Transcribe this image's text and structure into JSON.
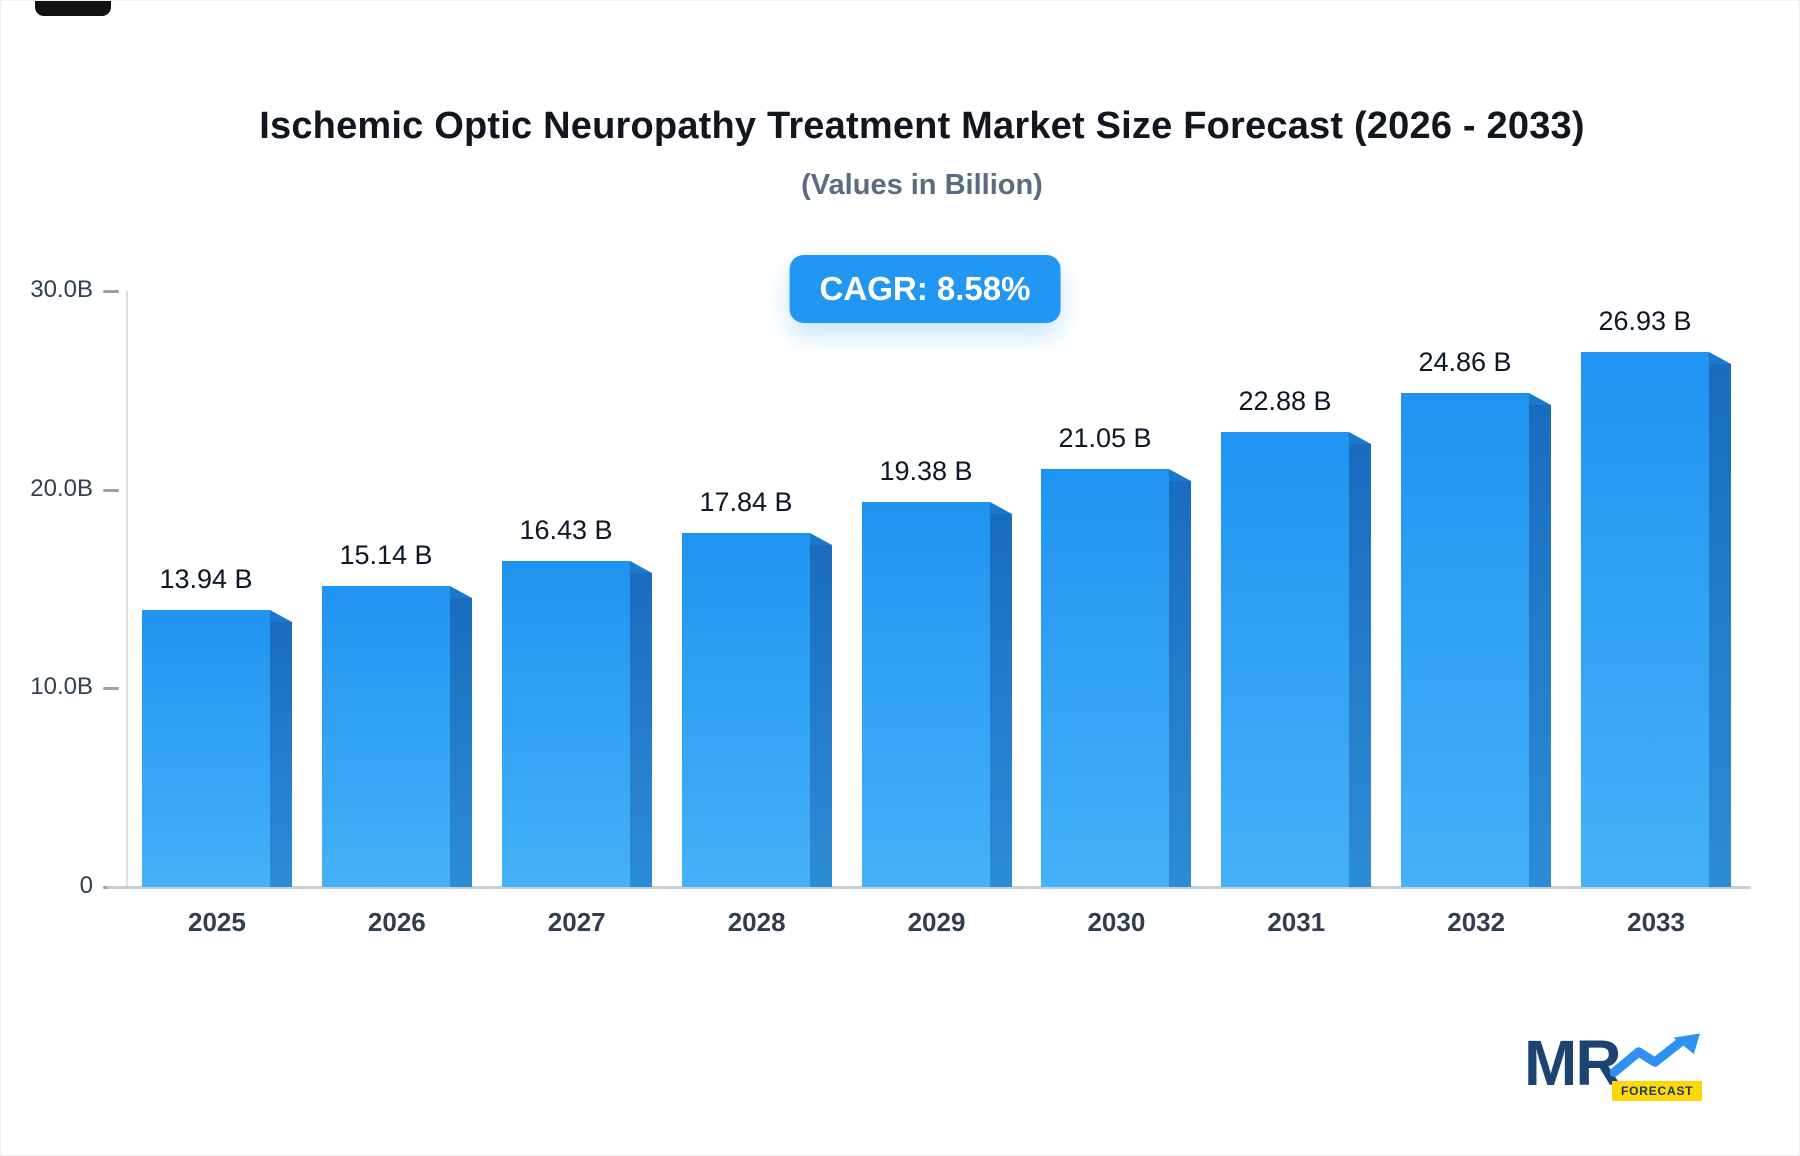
{
  "header": {
    "title": "Ischemic Optic Neuropathy Treatment Market Size Forecast (2026 - 2033)",
    "subtitle": "(Values in Billion)",
    "cagr_badge": "CAGR: 8.58%"
  },
  "chart_data": {
    "type": "bar",
    "title": "Ischemic Optic Neuropathy Treatment Market Size Forecast (2026 - 2033)",
    "subtitle": "(Values in Billion)",
    "cagr_percent": 8.58,
    "categories": [
      "2025",
      "2026",
      "2027",
      "2028",
      "2029",
      "2030",
      "2031",
      "2032",
      "2033"
    ],
    "values": [
      13.94,
      15.14,
      16.43,
      17.84,
      19.38,
      21.05,
      22.88,
      24.86,
      26.93
    ],
    "value_labels": [
      "13.94 B",
      "15.14 B",
      "16.43 B",
      "17.84 B",
      "19.38 B",
      "21.05 B",
      "22.88 B",
      "24.86 B",
      "26.93 B"
    ],
    "ylim": [
      0,
      30
    ],
    "yticks": [
      {
        "value": 30,
        "label": "30.0B"
      },
      {
        "value": 20,
        "label": "20.0B"
      },
      {
        "value": 10,
        "label": "10.0B"
      },
      {
        "value": 0,
        "label": "0"
      }
    ],
    "grid": false,
    "legend": false,
    "bar_front_color": "#2b9cf2",
    "bar_side_color": "#1b6fc2"
  },
  "logo": {
    "brand": "MR",
    "tagline": "FORECAST",
    "arrow_icon": "trend-up-arrow",
    "arrow_color": "#2f90f3",
    "tagline_bg": "#ffd60a"
  },
  "colors": {
    "badge_bg": "#2196f3",
    "badge_text": "#ffffff",
    "axis": "#c7cdd3",
    "title_text": "#12171f",
    "subtitle_text": "#5b6b80"
  }
}
